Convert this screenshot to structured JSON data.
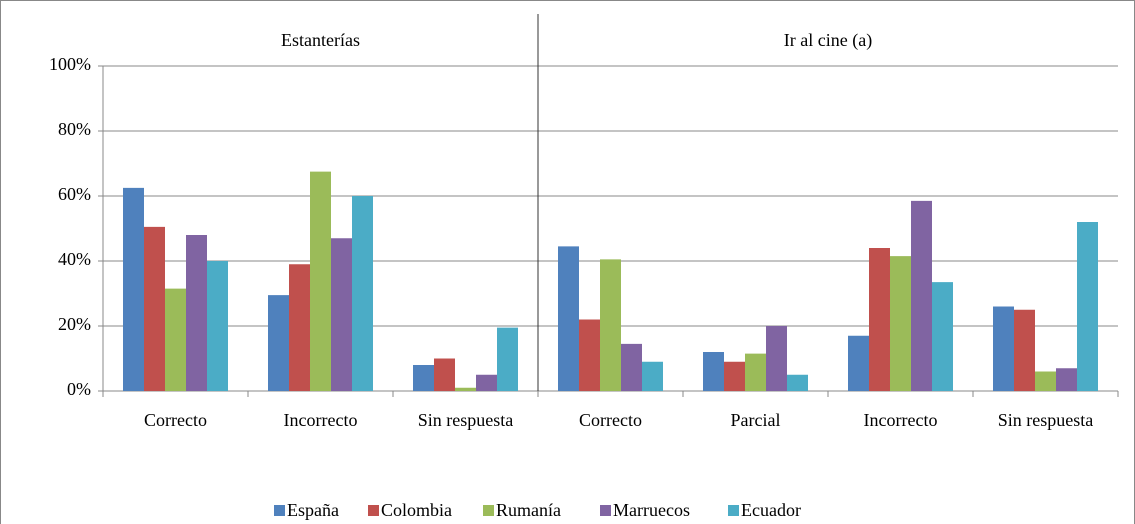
{
  "chart_data": {
    "type": "bar",
    "panels": [
      {
        "title": "Estanterías",
        "categories": [
          "Correcto",
          "Incorrecto",
          "Sin respuesta"
        ]
      },
      {
        "title": "Ir al cine (a)",
        "categories": [
          "Correcto",
          "Parcial",
          "Incorrecto",
          "Sin respuesta"
        ]
      }
    ],
    "series": [
      {
        "name": "España",
        "color": "#4f81bd",
        "values": [
          62.5,
          29.5,
          8,
          44.5,
          12,
          17,
          26
        ]
      },
      {
        "name": "Colombia",
        "color": "#c0504d",
        "values": [
          50.5,
          39,
          10,
          22,
          9,
          44,
          25
        ]
      },
      {
        "name": "Rumanía",
        "color": "#9bbb59",
        "values": [
          31.5,
          67.5,
          1,
          40.5,
          11.5,
          41.5,
          6
        ]
      },
      {
        "name": "Marruecos",
        "color": "#8064a2",
        "values": [
          48,
          47,
          5,
          14.5,
          20,
          58.5,
          7
        ]
      },
      {
        "name": "Ecuador",
        "color": "#4bacc6",
        "values": [
          40,
          60,
          19.5,
          9,
          5,
          33.5,
          52
        ]
      }
    ],
    "ylim": [
      0,
      100
    ],
    "yticks": [
      {
        "value": 0,
        "label": "0%"
      },
      {
        "value": 20,
        "label": "20%"
      },
      {
        "value": 40,
        "label": "40%"
      },
      {
        "value": 60,
        "label": "60%"
      },
      {
        "value": 80,
        "label": "80%"
      },
      {
        "value": 100,
        "label": "100%"
      }
    ],
    "grid": true,
    "legend": "bottom"
  }
}
